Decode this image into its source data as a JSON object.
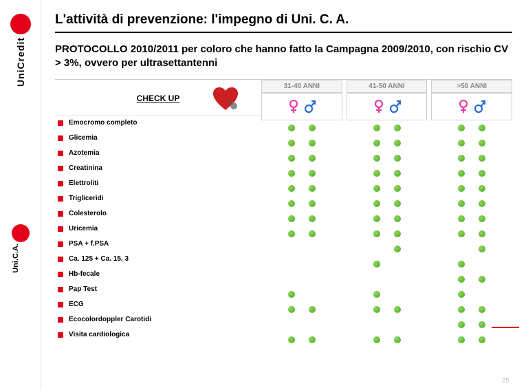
{
  "sidebar": {
    "brand1": "UniCredit",
    "brand2": "Uni.C.A."
  },
  "title": "L'attività di prevenzione: l'impegno di Uni. C. A.",
  "subtitle": "PROTOCOLLO 2010/2011 per coloro che hanno fatto la Campagna 2009/2010, con rischio CV > 3%, ovvero per ultrasettantenni",
  "checkup_label": "CHECK UP",
  "age_groups": [
    "31-40 ANNI",
    "41-50 ANNI",
    ">50 ANNI"
  ],
  "bullet_color": "#e2001a",
  "dot_color": "#5fbf2f",
  "tests": [
    {
      "name": "Emocromo completo",
      "dots": [
        [
          1,
          1
        ],
        [
          1,
          1
        ],
        [
          1,
          1
        ]
      ]
    },
    {
      "name": "Glicemia",
      "dots": [
        [
          1,
          1
        ],
        [
          1,
          1
        ],
        [
          1,
          1
        ]
      ]
    },
    {
      "name": "Azotemia",
      "dots": [
        [
          1,
          1
        ],
        [
          1,
          1
        ],
        [
          1,
          1
        ]
      ]
    },
    {
      "name": "Creatinina",
      "dots": [
        [
          1,
          1
        ],
        [
          1,
          1
        ],
        [
          1,
          1
        ]
      ]
    },
    {
      "name": "Elettroliti",
      "dots": [
        [
          1,
          1
        ],
        [
          1,
          1
        ],
        [
          1,
          1
        ]
      ]
    },
    {
      "name": "Trigliceridi",
      "dots": [
        [
          1,
          1
        ],
        [
          1,
          1
        ],
        [
          1,
          1
        ]
      ]
    },
    {
      "name": "Colesterolo",
      "dots": [
        [
          1,
          1
        ],
        [
          1,
          1
        ],
        [
          1,
          1
        ]
      ]
    },
    {
      "name": "Uricemia",
      "dots": [
        [
          1,
          1
        ],
        [
          1,
          1
        ],
        [
          1,
          1
        ]
      ]
    },
    {
      "name": "PSA + f.PSA",
      "dots": [
        [
          0,
          0
        ],
        [
          0,
          1
        ],
        [
          0,
          1
        ]
      ]
    },
    {
      "name": "Ca. 125 + Ca. 15, 3",
      "dots": [
        [
          0,
          0
        ],
        [
          1,
          0
        ],
        [
          1,
          0
        ]
      ]
    },
    {
      "name": "Hb-fecale",
      "dots": [
        [
          0,
          0
        ],
        [
          0,
          0
        ],
        [
          1,
          1
        ]
      ]
    },
    {
      "name": "Pap Test",
      "dots": [
        [
          1,
          0
        ],
        [
          1,
          0
        ],
        [
          1,
          0
        ]
      ]
    },
    {
      "name": "ECG",
      "dots": [
        [
          1,
          1
        ],
        [
          1,
          1
        ],
        [
          1,
          1
        ]
      ]
    },
    {
      "name": "Ecocolordoppler Carotidi",
      "dots": [
        [
          0,
          0
        ],
        [
          0,
          0
        ],
        [
          1,
          1
        ]
      ]
    },
    {
      "name": "Visita cardiologica",
      "dots": [
        [
          1,
          1
        ],
        [
          1,
          1
        ],
        [
          1,
          1
        ]
      ]
    }
  ],
  "page_number": "25"
}
